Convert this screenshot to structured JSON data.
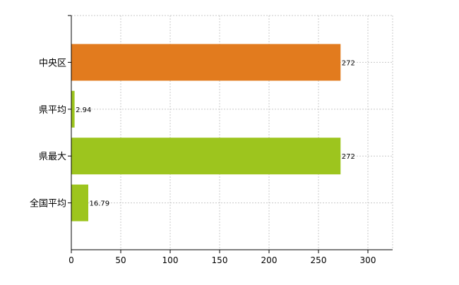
{
  "chart_data": {
    "type": "bar",
    "orientation": "horizontal",
    "categories": [
      "中央区",
      "県平均",
      "県最大",
      "全国平均"
    ],
    "values": [
      272,
      2.94,
      272,
      16.79
    ],
    "value_labels": [
      "272",
      "2.94",
      "272",
      "16.79"
    ],
    "bar_colors": [
      "#E27B1E",
      "#9DC51E",
      "#9DC51E",
      "#9DC51E"
    ],
    "xlim": [
      0,
      325
    ],
    "x_ticks": [
      0,
      50,
      100,
      150,
      200,
      250,
      300
    ],
    "x_tick_labels": [
      "0",
      "50",
      "100",
      "150",
      "200",
      "250",
      "300"
    ],
    "grid": true,
    "legend": "none",
    "title": "",
    "xlabel": "",
    "ylabel": ""
  }
}
